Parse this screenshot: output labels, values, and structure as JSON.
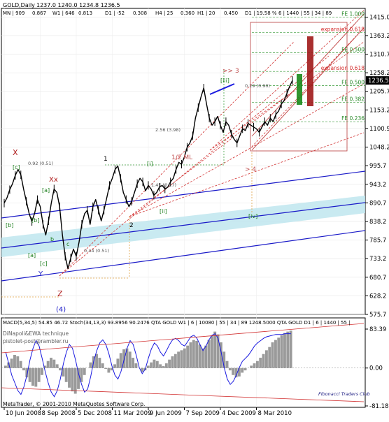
{
  "chart_data": {
    "type": "line",
    "title": "GOLD,Daily",
    "ohlc": "1237.0 1240.0 1234.8 1236.5",
    "header_stats": [
      "MN | 909",
      "0.867",
      "W1 | 646",
      "0.813",
      "D1 | -52",
      "0.308",
      "H4 | 25",
      "0.360",
      "H1 | 20",
      "0.450",
      "D1 | 19.58 %",
      "6 | 1440 | 55 | 34 | 89"
    ],
    "x_ticks": [
      "10 Jun 2008",
      "8 Sep 2008",
      "5 Dec 2008",
      "11 Mar 2009",
      "9 Jun 2009",
      "7 Sep 2009",
      "4 Dec 2009",
      "8 Mar 2010"
    ],
    "y_ticks": [
      "1415.0",
      "1363.2",
      "1310.7",
      "1258.2",
      "1205.7",
      "1153.2",
      "1100.9",
      "1048.2",
      "995.7",
      "943.2",
      "890.7",
      "838.2",
      "785.7",
      "733.2",
      "680.7",
      "628.2",
      "575.7"
    ],
    "ylim": [
      575.7,
      1440.0
    ],
    "last_price": "1236.5",
    "series": [
      {
        "name": "",
        "x": [
          0,
          4,
          8,
          12,
          16,
          20,
          24,
          28,
          32,
          36,
          40,
          44,
          48,
          52,
          56,
          60,
          64,
          68,
          72,
          76,
          80,
          84,
          88,
          92,
          96,
          100,
          104,
          108,
          112,
          116,
          120,
          124,
          128,
          132,
          136,
          140,
          144,
          148,
          152,
          156,
          160,
          164,
          168,
          172,
          176,
          180,
          184,
          188,
          192,
          196,
          200,
          204,
          208,
          212,
          216,
          220,
          224,
          228,
          232,
          236,
          240,
          244,
          248,
          252,
          256,
          260,
          264,
          268,
          272,
          276,
          280,
          284,
          288,
          292,
          296,
          300,
          304,
          308,
          312,
          316,
          320,
          324,
          328,
          332,
          336,
          340,
          344,
          348,
          352,
          356,
          360,
          364,
          368,
          372,
          376,
          380,
          384,
          388,
          392,
          396,
          400,
          404,
          408,
          412,
          416
        ],
        "values": [
          890,
          905,
          928,
          945,
          968,
          985,
          970,
          930,
          895,
          860,
          838,
          862,
          900,
          880,
          830,
          800,
          840,
          890,
          930,
          920,
          880,
          800,
          740,
          705,
          735,
          760,
          740,
          780,
          830,
          860,
          870,
          830,
          880,
          900,
          870,
          840,
          870,
          905,
          940,
          960,
          985,
          995,
          960,
          920,
          900,
          880,
          895,
          920,
          945,
          960,
          950,
          925,
          940,
          930,
          912,
          920,
          935,
          940,
          930,
          935,
          950,
          960,
          985,
          1005,
          1000,
          1020,
          1048,
          1060,
          1080,
          1130,
          1160,
          1190,
          1215,
          1170,
          1130,
          1110,
          1120,
          1135,
          1110,
          1090,
          1120,
          1110,
          1085,
          1070,
          1060,
          1080,
          1100,
          1095,
          1115,
          1110,
          1105,
          1100,
          1090,
          1105,
          1120,
          1110,
          1130,
          1120,
          1140,
          1150,
          1170,
          1180,
          1200,
          1220,
          1236.5
        ]
      }
    ],
    "wave_labels": [
      "X",
      "Xx",
      "[c]",
      "[b]",
      "[a]",
      "[c]",
      "[b]",
      "[a]",
      "Y",
      "Z",
      "(4)",
      "1",
      "2",
      "[i]",
      "[ii]",
      "[iii]",
      "[iv]",
      ">> 3",
      "> 4",
      "1/2 ML",
      "c",
      "b"
    ],
    "levels": [
      {
        "label": "FE 1.000",
        "value": 1415.0
      },
      {
        "label": "expansion 0.618",
        "value": 1372.0
      },
      {
        "label": "FE 0.500",
        "value": 1315.0
      },
      {
        "label": "expansion 0.618",
        "value": 1262.0
      },
      {
        "label": "FE 0.500",
        "value": 1222.0
      },
      {
        "label": "FE 0.382",
        "value": 1175.0
      },
      {
        "label": "FE 0.236",
        "value": 1120.0
      }
    ],
    "ratio_labels": [
      "0.92 (0.51)",
      "2.56 (3.98)",
      "0.44 (0.51)",
      "1.45 (0.27)",
      "0.29 (0.90)"
    ],
    "indicator": {
      "label": "MACD(5,34,5) 54.85 46.72  Stoch(34,13,3) 93.8956 90.2476  QTA GOLD W1 | 6 | 10080 | 55 | 34 | 89 1248.5000  QTA GOLD D1 | 6 | 1440 | 55 |",
      "technique": "DiNapoli&EWA technique",
      "author": "pistolet-post@rambler.ru",
      "y_ticks": [
        "83.39",
        "0.00",
        "-81.18"
      ],
      "ylim": [
        -81.18,
        83.39
      ],
      "histogram": [
        5,
        12,
        20,
        28,
        25,
        15,
        -5,
        -20,
        -30,
        -38,
        -40,
        -30,
        -15,
        5,
        15,
        22,
        18,
        8,
        -5,
        -18,
        -30,
        -42,
        -50,
        -55,
        -45,
        -30,
        -15,
        0,
        12,
        25,
        30,
        22,
        10,
        -2,
        -10,
        -5,
        8,
        20,
        32,
        40,
        42,
        35,
        22,
        10,
        0,
        -8,
        -5,
        5,
        12,
        18,
        15,
        8,
        4,
        10,
        18,
        25,
        30,
        35,
        38,
        42,
        48,
        55,
        60,
        58,
        50,
        42,
        48,
        60,
        70,
        78,
        72,
        55,
        35,
        15,
        -5,
        -15,
        -20,
        -18,
        -10,
        -5,
        0,
        5,
        10,
        15,
        22,
        30,
        38,
        45,
        55,
        60,
        65,
        70,
        75,
        78,
        80
      ],
      "stoch": [
        70,
        55,
        40,
        30,
        20,
        15,
        25,
        40,
        60,
        75,
        85,
        78,
        62,
        45,
        30,
        18,
        12,
        20,
        35,
        55,
        70,
        80,
        75,
        60,
        42,
        28,
        18,
        22,
        38,
        58,
        72,
        82,
        86,
        80,
        68,
        52,
        40,
        35,
        45,
        60,
        75,
        85,
        80,
        66,
        50,
        42,
        48,
        62,
        74,
        82,
        78,
        70,
        65,
        72,
        80,
        86,
        88,
        85,
        80,
        78,
        84,
        90,
        92,
        88,
        80,
        72,
        78,
        86,
        92,
        94,
        88,
        70,
        50,
        35,
        28,
        32,
        40,
        50,
        58,
        62,
        66,
        72,
        78,
        82,
        85,
        88,
        90,
        91,
        92,
        93,
        93,
        93,
        94,
        94,
        94
      ]
    },
    "footer": "MetaTrader, © 2001-2010 MetaQuotes Software Corp.",
    "club": "Fibonacci Traders Club"
  }
}
